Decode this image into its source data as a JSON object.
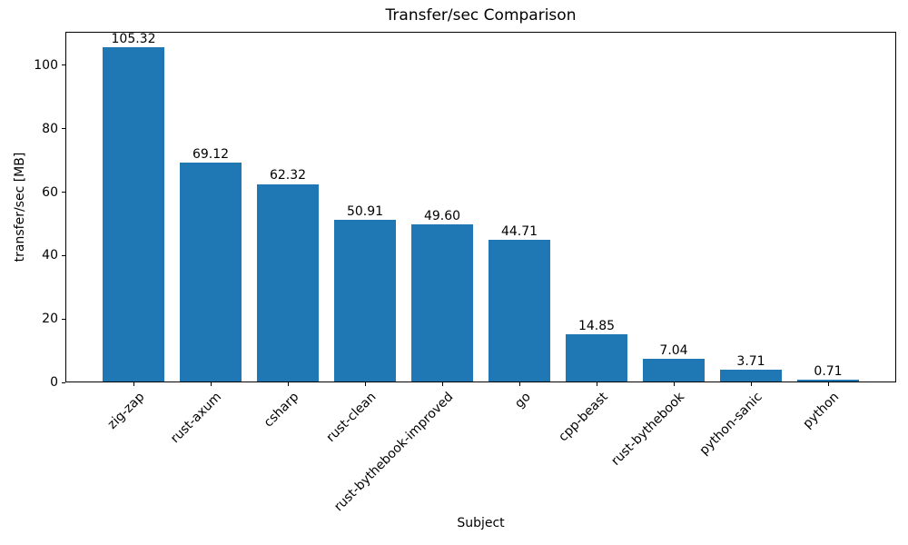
{
  "chart_data": {
    "type": "bar",
    "title": "Transfer/sec Comparison",
    "xlabel": "Subject",
    "ylabel": "transfer/sec [MB]",
    "categories": [
      "zig-zap",
      "rust-axum",
      "csharp",
      "rust-clean",
      "rust-bythebook-improved",
      "go",
      "cpp-beast",
      "rust-bythebook",
      "python-sanic",
      "python"
    ],
    "values": [
      105.32,
      69.12,
      62.32,
      50.91,
      49.6,
      44.71,
      14.85,
      7.04,
      3.71,
      0.71
    ],
    "value_labels": [
      "105.32",
      "69.12",
      "62.32",
      "50.91",
      "49.60",
      "44.71",
      "14.85",
      "7.04",
      "3.71",
      "0.71"
    ],
    "yticks": [
      0,
      20,
      40,
      60,
      80,
      100
    ],
    "ylim": [
      0,
      110.6
    ],
    "bar_color": "#1f77b4",
    "grid": false,
    "legend": "none",
    "xtick_rotation_deg": 45
  }
}
